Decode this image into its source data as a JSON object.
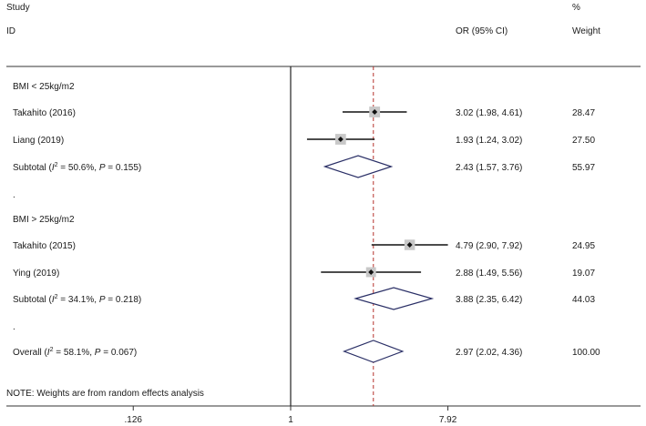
{
  "header": {
    "study": "Study",
    "id": "ID",
    "or_label": "OR (95% CI)",
    "pct": "%",
    "weight": "Weight"
  },
  "note": "NOTE: Weights are from random effects analysis",
  "chart_data": {
    "type": "forest",
    "x_scale": "log",
    "xlim": [
      0.126,
      7.92
    ],
    "xticks": [
      ".126",
      "1",
      "7.92"
    ],
    "null_line": 1,
    "overall_line": 2.97,
    "rows": [
      {
        "kind": "group",
        "label": "BMI < 25kg/m2"
      },
      {
        "kind": "study",
        "label": "Takahito (2016)",
        "or": 3.02,
        "lo": 1.98,
        "hi": 4.61,
        "ci_text": "3.02 (1.98, 4.61)",
        "weight": "28.47"
      },
      {
        "kind": "study",
        "label": "Liang (2019)",
        "or": 1.93,
        "lo": 1.24,
        "hi": 3.02,
        "ci_text": "1.93 (1.24, 3.02)",
        "weight": "27.50"
      },
      {
        "kind": "subtotal",
        "label": "Subtotal",
        "i2": "50.6%",
        "p": "0.155",
        "or": 2.43,
        "lo": 1.57,
        "hi": 3.76,
        "ci_text": "2.43 (1.57, 3.76)",
        "weight": "55.97"
      },
      {
        "kind": "sep",
        "label": "."
      },
      {
        "kind": "group",
        "label": "BMI > 25kg/m2"
      },
      {
        "kind": "study",
        "label": "Takahito (2015)",
        "or": 4.79,
        "lo": 2.9,
        "hi": 7.92,
        "ci_text": "4.79 (2.90, 7.92)",
        "weight": "24.95"
      },
      {
        "kind": "study",
        "label": "Ying (2019)",
        "or": 2.88,
        "lo": 1.49,
        "hi": 5.56,
        "ci_text": "2.88 (1.49, 5.56)",
        "weight": "19.07"
      },
      {
        "kind": "subtotal",
        "label": "Subtotal",
        "i2": "34.1%",
        "p": "0.218",
        "or": 3.88,
        "lo": 2.35,
        "hi": 6.42,
        "ci_text": "3.88 (2.35, 6.42)",
        "weight": "44.03"
      },
      {
        "kind": "sep",
        "label": "."
      },
      {
        "kind": "subtotal",
        "label": "Overall",
        "i2": "58.1%",
        "p": "0.067",
        "or": 2.97,
        "lo": 2.02,
        "hi": 4.36,
        "ci_text": "2.97 (2.02, 4.36)",
        "weight": "100.00"
      }
    ]
  }
}
